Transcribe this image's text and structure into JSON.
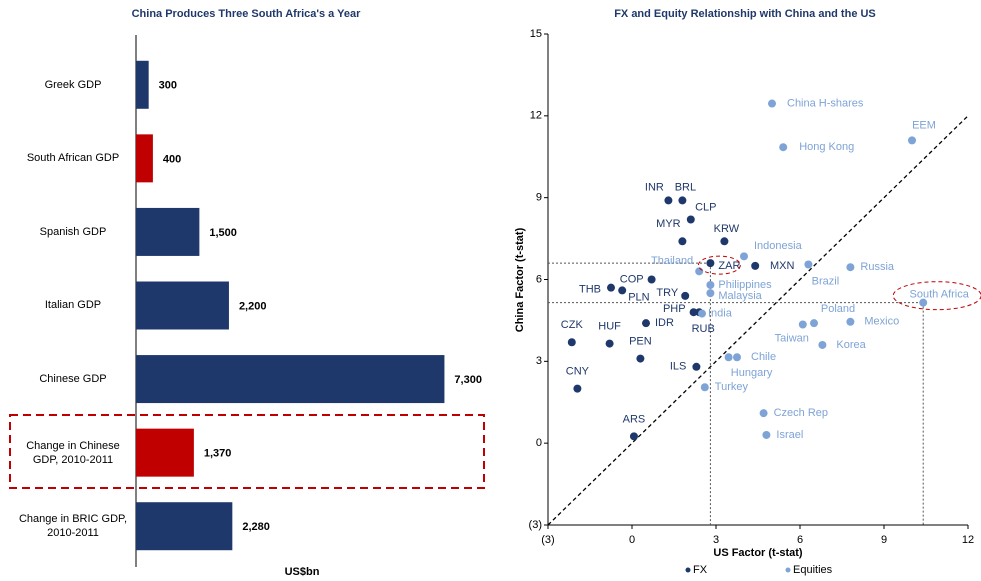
{
  "chart_data": [
    {
      "type": "bar",
      "orientation": "horizontal",
      "title": "China Produces Three South Africa's a Year",
      "xlabel": "US$bn",
      "categories": [
        "Greek GDP",
        "South African GDP",
        "Spanish GDP",
        "Italian GDP",
        "Chinese GDP",
        "Change in Chinese GDP, 2010-2011",
        "Change in BRIC GDP, 2010-2011"
      ],
      "values": [
        300,
        400,
        1500,
        2200,
        7300,
        1370,
        2280
      ],
      "value_labels": [
        "300",
        "400",
        "1,500",
        "2,200",
        "7,300",
        "1,370",
        "2,280"
      ],
      "colors": [
        "#1f386b",
        "#c00000",
        "#1f386b",
        "#1f386b",
        "#1f386b",
        "#c00000",
        "#1f386b"
      ],
      "xlim": [
        0,
        8000
      ]
    },
    {
      "type": "scatter",
      "title": "FX and Equity Relationship with China and the US",
      "xlabel": "US Factor (t-stat)",
      "ylabel": "China Factor (t-stat)",
      "xlim": [
        -3,
        12
      ],
      "ylim": [
        -3,
        15
      ],
      "xticks": [
        {
          "value": -3,
          "label": "(3)"
        },
        0,
        3,
        6,
        9,
        12
      ],
      "yticks": [
        {
          "value": -3,
          "label": "(3)"
        },
        0,
        3,
        6,
        9,
        12,
        15
      ],
      "series": [
        {
          "name": "FX",
          "color": "#1f386b",
          "point_labels": [
            "INR",
            "BRL",
            "CLP",
            "MYR",
            "KRW",
            "ZAR",
            "MXN",
            "COP",
            "THB",
            "PLN",
            "TRY",
            "PHP",
            "IDR",
            "RUB",
            "CZK",
            "HUF",
            "PEN",
            "ILS",
            "CNY",
            "ARS"
          ],
          "x": [
            1.3,
            1.8,
            2.1,
            1.8,
            3.3,
            2.8,
            4.4,
            0.7,
            -0.75,
            -0.35,
            1.9,
            2.2,
            0.5,
            2.4,
            -2.15,
            -0.8,
            0.3,
            2.3,
            -1.95,
            0.07
          ],
          "values": [
            8.9,
            8.9,
            8.2,
            7.4,
            7.4,
            6.6,
            6.5,
            6.0,
            5.7,
            5.6,
            5.4,
            4.8,
            4.4,
            4.8,
            3.7,
            3.65,
            3.1,
            2.8,
            2.0,
            0.25
          ]
        },
        {
          "name": "Equities",
          "color": "#7ea3d6",
          "point_labels": [
            "China H-shares",
            "EEM",
            "Hong Kong",
            "Indonesia",
            "Thailand",
            "Brazil",
            "Russia",
            "Philippines",
            "Malaysia",
            "South Africa",
            "India",
            "Poland",
            "Taiwan",
            "Mexico",
            "Korea",
            "Chile",
            "Hungary",
            "Turkey",
            "Czech Rep",
            "Israel"
          ],
          "x": [
            5.0,
            10.0,
            5.4,
            4.0,
            2.4,
            6.3,
            7.8,
            2.8,
            2.8,
            10.4,
            2.5,
            6.5,
            6.1,
            7.8,
            6.8,
            3.75,
            3.45,
            2.6,
            4.7,
            4.8
          ],
          "values": [
            12.45,
            11.1,
            10.85,
            6.85,
            6.3,
            6.55,
            6.45,
            5.8,
            5.5,
            5.15,
            4.75,
            4.4,
            4.35,
            4.45,
            3.6,
            3.15,
            3.15,
            2.05,
            1.1,
            0.3
          ]
        }
      ]
    }
  ]
}
